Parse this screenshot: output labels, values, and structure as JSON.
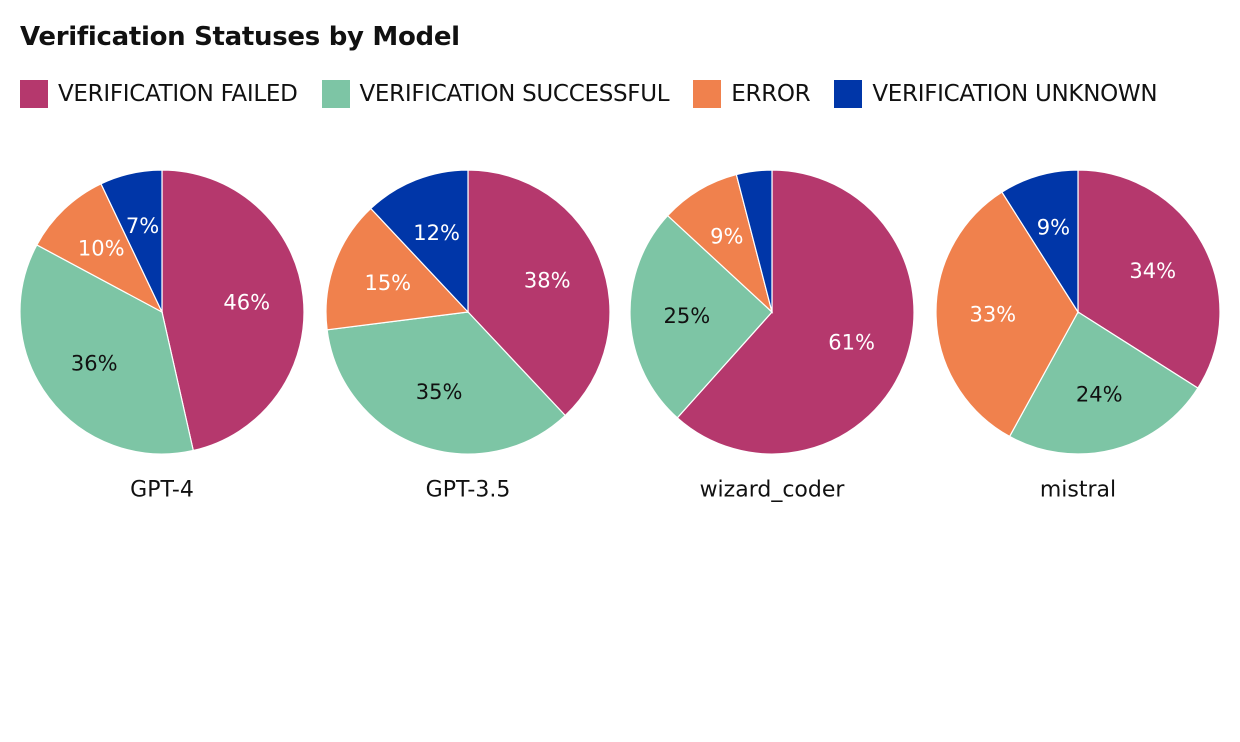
{
  "title": "Verification Statuses by Model",
  "legend": [
    {
      "label": "VERIFICATION FAILED",
      "color": "#b5386d"
    },
    {
      "label": "VERIFICATION SUCCESSFUL",
      "color": "#7dc5a5"
    },
    {
      "label": "ERROR",
      "color": "#f0814d"
    },
    {
      "label": "VERIFICATION UNKNOWN",
      "color": "#0036a8"
    }
  ],
  "chart_data": [
    {
      "type": "pie",
      "name": "GPT-4",
      "slices": [
        {
          "label": "VERIFICATION FAILED",
          "value": 46,
          "text": "46%",
          "color": "#b5386d"
        },
        {
          "label": "VERIFICATION SUCCESSFUL",
          "value": 36,
          "text": "36%",
          "color": "#7dc5a5"
        },
        {
          "label": "ERROR",
          "value": 10,
          "text": "10%",
          "color": "#f0814d"
        },
        {
          "label": "VERIFICATION UNKNOWN",
          "value": 7,
          "text": "7%",
          "color": "#0036a8"
        }
      ]
    },
    {
      "type": "pie",
      "name": "GPT-3.5",
      "slices": [
        {
          "label": "VERIFICATION FAILED",
          "value": 38,
          "text": "38%",
          "color": "#b5386d"
        },
        {
          "label": "VERIFICATION SUCCESSFUL",
          "value": 35,
          "text": "35%",
          "color": "#7dc5a5"
        },
        {
          "label": "ERROR",
          "value": 15,
          "text": "15%",
          "color": "#f0814d"
        },
        {
          "label": "VERIFICATION UNKNOWN",
          "value": 12,
          "text": "12%",
          "color": "#0036a8"
        }
      ]
    },
    {
      "type": "pie",
      "name": "wizard_coder",
      "slices": [
        {
          "label": "VERIFICATION FAILED",
          "value": 61,
          "text": "61%",
          "color": "#b5386d"
        },
        {
          "label": "VERIFICATION SUCCESSFUL",
          "value": 25,
          "text": "25%",
          "color": "#7dc5a5"
        },
        {
          "label": "ERROR",
          "value": 9,
          "text": "9%",
          "color": "#f0814d"
        },
        {
          "label": "VERIFICATION UNKNOWN",
          "value": 4,
          "text": "",
          "color": "#0036a8"
        }
      ]
    },
    {
      "type": "pie",
      "name": "mistral",
      "slices": [
        {
          "label": "VERIFICATION FAILED",
          "value": 34,
          "text": "34%",
          "color": "#b5386d"
        },
        {
          "label": "VERIFICATION SUCCESSFUL",
          "value": 24,
          "text": "24%",
          "color": "#7dc5a5"
        },
        {
          "label": "ERROR",
          "value": 33,
          "text": "33%",
          "color": "#f0814d"
        },
        {
          "label": "VERIFICATION UNKNOWN",
          "value": 9,
          "text": "9%",
          "color": "#0036a8"
        }
      ]
    }
  ]
}
